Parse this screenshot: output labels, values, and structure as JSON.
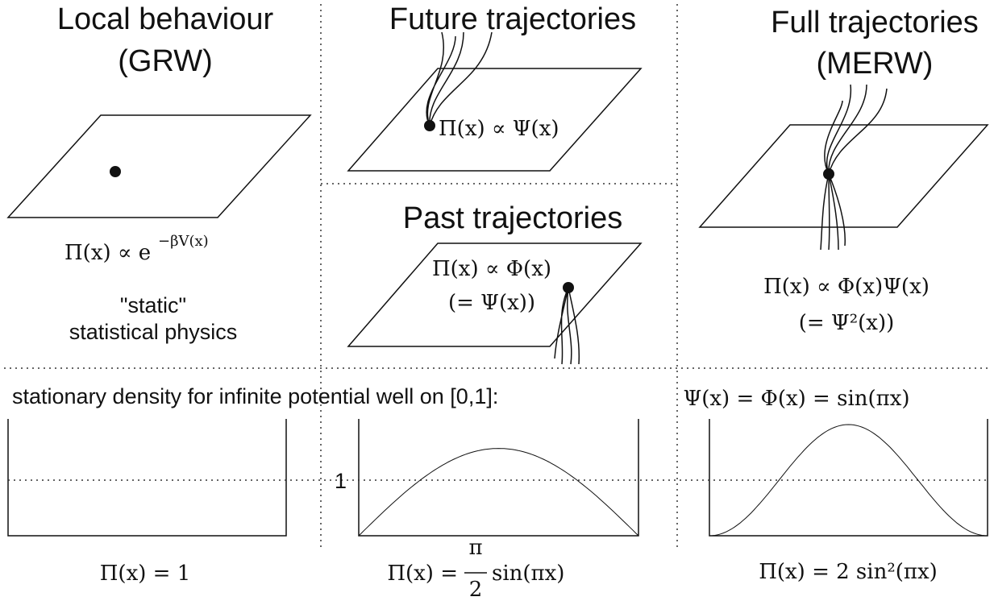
{
  "local": {
    "title": "Local behaviour",
    "subtitle": "(GRW)",
    "formula": "Π(x) ∝ e",
    "formula_exponent": "−βV(x)",
    "caption_line1": "\"static\"",
    "caption_line2": "statistical physics"
  },
  "future": {
    "title": "Future trajectories",
    "formula": "Π(x) ∝ Ψ(x)"
  },
  "past": {
    "title": "Past trajectories",
    "formula_line1": "Π(x) ∝ Φ(x)",
    "formula_line2": "(= Ψ(x))"
  },
  "full": {
    "title": "Full trajectories",
    "subtitle": "(MERW)",
    "formula_line1": "Π(x) ∝ Φ(x)Ψ(x)",
    "formula_line2": "(= Ψ²(x))"
  },
  "bottom": {
    "heading": "stationary density  for infinite potential well on [0,1]:",
    "wavefunction": "Ψ(x) = Φ(x) = sin(πx)",
    "level_label": "1",
    "grw_formula": "Π(x) = 1",
    "middle_formula_left": "Π(x) =",
    "middle_formula_numerator": "π",
    "middle_formula_denominator": "2",
    "middle_formula_right": "sin(πx)",
    "merw_formula": "Π(x) = 2 sin²(πx)"
  }
}
